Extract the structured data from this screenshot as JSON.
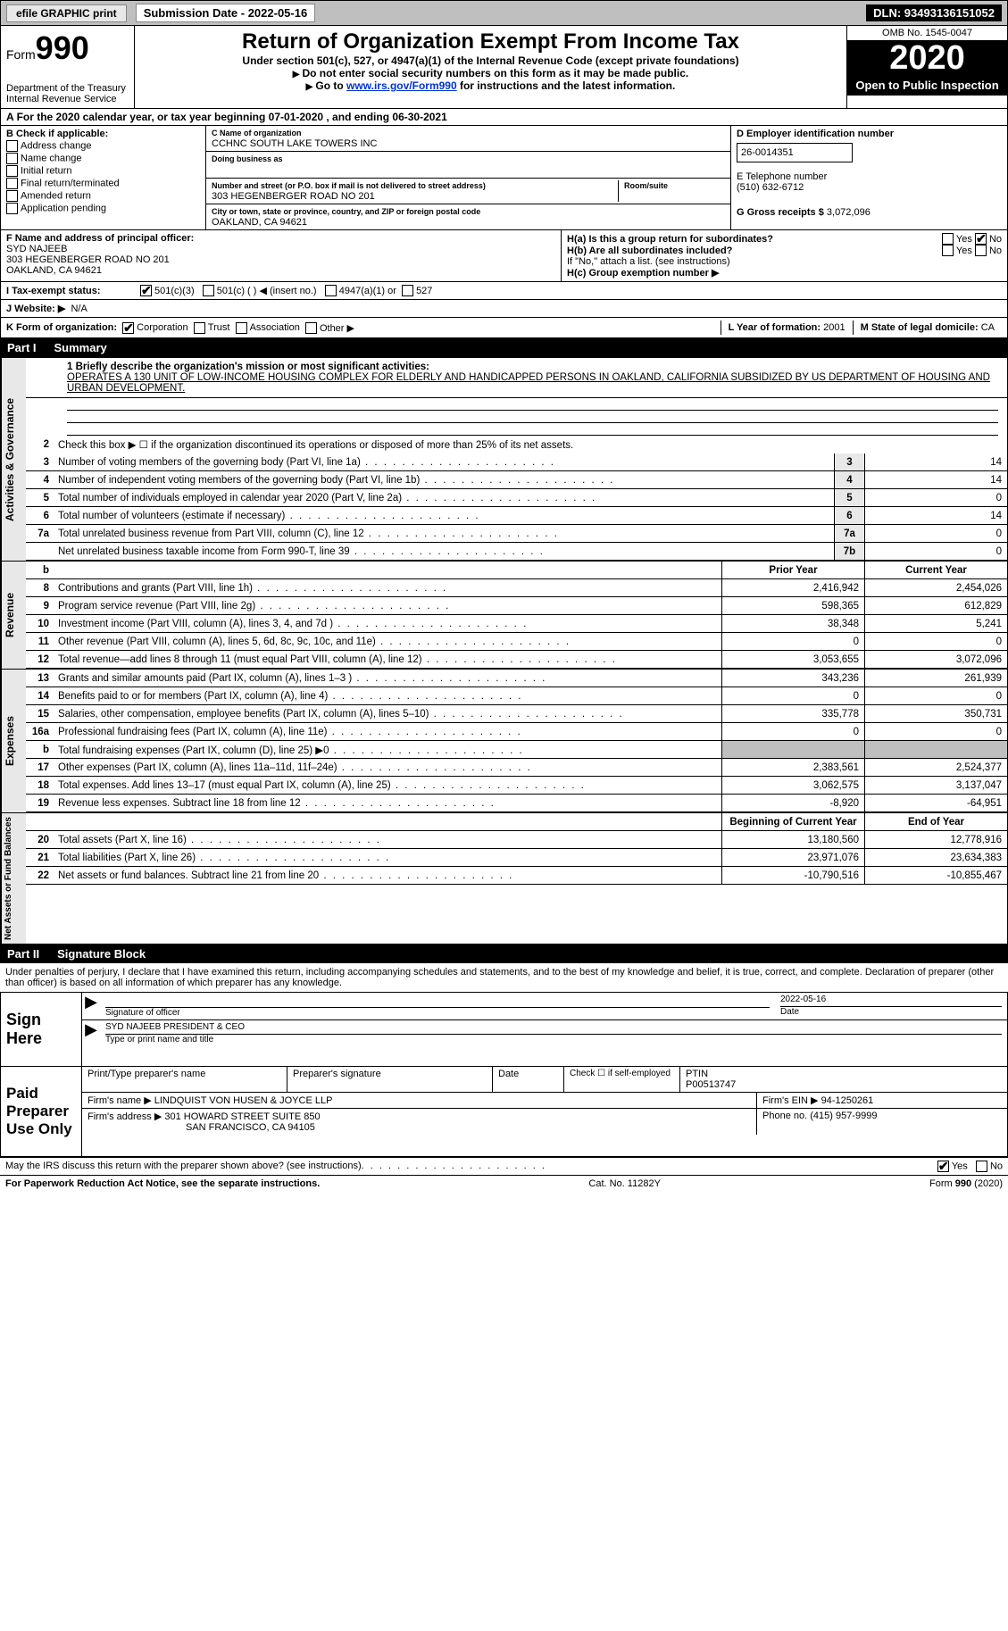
{
  "colors": {
    "header_bg": "#bfbfbf",
    "black": "#000000",
    "link": "#0033cc",
    "shade": "#e8e8e8"
  },
  "top_bar": {
    "efile_btn": "efile GRAPHIC print",
    "sub_date_lbl": "Submission Date - 2022-05-16",
    "dln": "DLN: 93493136151052"
  },
  "header": {
    "form_label": "Form",
    "form_num": "990",
    "dept": "Department of the Treasury",
    "irs": "Internal Revenue Service",
    "title": "Return of Organization Exempt From Income Tax",
    "sub1": "Under section 501(c), 527, or 4947(a)(1) of the Internal Revenue Code (except private foundations)",
    "sub2": "Do not enter social security numbers on this form as it may be made public.",
    "sub3_pre": "Go to ",
    "sub3_link": "www.irs.gov/Form990",
    "sub3_post": " for instructions and the latest information.",
    "omb": "OMB No. 1545-0047",
    "year": "2020",
    "open_pub": "Open to Public Inspection"
  },
  "tax_year_line": "For the 2020 calendar year, or tax year beginning 07-01-2020    , and ending 06-30-2021",
  "section_b": {
    "lbl": "B Check if applicable:",
    "items": [
      "Address change",
      "Name change",
      "Initial return",
      "Final return/terminated",
      "Amended return",
      "Application pending"
    ]
  },
  "section_c": {
    "name_lbl": "C Name of organization",
    "name": "CCHNC SOUTH LAKE TOWERS INC",
    "dba_lbl": "Doing business as",
    "addr_lbl": "Number and street (or P.O. box if mail is not delivered to street address)",
    "room_lbl": "Room/suite",
    "addr": "303 HEGENBERGER ROAD NO 201",
    "city_lbl": "City or town, state or province, country, and ZIP or foreign postal code",
    "city": "OAKLAND, CA  94621"
  },
  "section_d": {
    "lbl": "D Employer identification number",
    "val": "26-0014351"
  },
  "section_e": {
    "lbl": "E Telephone number",
    "val": "(510) 632-6712"
  },
  "section_g": {
    "lbl": "G Gross receipts $",
    "val": "3,072,096"
  },
  "section_f": {
    "lbl": "F Name and address of principal officer:",
    "name": "SYD NAJEEB",
    "addr1": "303 HEGENBERGER ROAD NO 201",
    "addr2": "OAKLAND, CA  94621"
  },
  "section_h": {
    "a_lbl": "H(a)  Is this a group return for subordinates?",
    "a_yes": "Yes",
    "a_no": "No",
    "b_lbl": "H(b)  Are all subordinates included?",
    "b_yes": "Yes",
    "b_no": "No",
    "b_note": "If \"No,\" attach a list. (see instructions)",
    "c_lbl": "H(c)  Group exemption number ▶"
  },
  "section_i": {
    "lbl": "I   Tax-exempt status:",
    "opts": [
      "501(c)(3)",
      "501(c) (  ) ◀ (insert no.)",
      "4947(a)(1) or",
      "527"
    ]
  },
  "section_j": {
    "lbl": "J   Website: ▶",
    "val": "N/A"
  },
  "section_k": {
    "lbl": "K Form of organization:",
    "opts": [
      "Corporation",
      "Trust",
      "Association",
      "Other ▶"
    ]
  },
  "section_l": {
    "lbl": "L Year of formation:",
    "val": "2001"
  },
  "section_m": {
    "lbl": "M State of legal domicile:",
    "val": "CA"
  },
  "part1": {
    "hdr_num": "Part I",
    "hdr_title": "Summary",
    "mission_lbl": "1   Briefly describe the organization's mission or most significant activities:",
    "mission": "OPERATES A 130 UNIT OF LOW-INCOME HOUSING COMPLEX FOR ELDERLY AND HANDICAPPED PERSONS IN OAKLAND, CALIFORNIA SUBSIDIZED BY US DEPARTMENT OF HOUSING AND URBAN DEVELOPMENT.",
    "line2": "Check this box ▶ ☐  if the organization discontinued its operations or disposed of more than 25% of its net assets.",
    "governance_lbl": "Activities & Governance",
    "revenue_lbl": "Revenue",
    "expenses_lbl": "Expenses",
    "netassets_lbl": "Net Assets or Fund Balances",
    "col_prior": "Prior Year",
    "col_current": "Current Year",
    "col_beg": "Beginning of Current Year",
    "col_end": "End of Year",
    "gov_lines": [
      {
        "n": "3",
        "d": "Number of voting members of the governing body (Part VI, line 1a)",
        "box": "3",
        "v": "14"
      },
      {
        "n": "4",
        "d": "Number of independent voting members of the governing body (Part VI, line 1b)",
        "box": "4",
        "v": "14"
      },
      {
        "n": "5",
        "d": "Total number of individuals employed in calendar year 2020 (Part V, line 2a)",
        "box": "5",
        "v": "0"
      },
      {
        "n": "6",
        "d": "Total number of volunteers (estimate if necessary)",
        "box": "6",
        "v": "14"
      },
      {
        "n": "7a",
        "d": "Total unrelated business revenue from Part VIII, column (C), line 12",
        "box": "7a",
        "v": "0"
      },
      {
        "n": "",
        "d": "Net unrelated business taxable income from Form 990-T, line 39",
        "box": "7b",
        "v": "0"
      }
    ],
    "rev_lines": [
      {
        "n": "8",
        "d": "Contributions and grants (Part VIII, line 1h)",
        "py": "2,416,942",
        "cy": "2,454,026"
      },
      {
        "n": "9",
        "d": "Program service revenue (Part VIII, line 2g)",
        "py": "598,365",
        "cy": "612,829"
      },
      {
        "n": "10",
        "d": "Investment income (Part VIII, column (A), lines 3, 4, and 7d )",
        "py": "38,348",
        "cy": "5,241"
      },
      {
        "n": "11",
        "d": "Other revenue (Part VIII, column (A), lines 5, 6d, 8c, 9c, 10c, and 11e)",
        "py": "0",
        "cy": "0"
      },
      {
        "n": "12",
        "d": "Total revenue—add lines 8 through 11 (must equal Part VIII, column (A), line 12)",
        "py": "3,053,655",
        "cy": "3,072,096"
      }
    ],
    "exp_lines": [
      {
        "n": "13",
        "d": "Grants and similar amounts paid (Part IX, column (A), lines 1–3 )",
        "py": "343,236",
        "cy": "261,939"
      },
      {
        "n": "14",
        "d": "Benefits paid to or for members (Part IX, column (A), line 4)",
        "py": "0",
        "cy": "0"
      },
      {
        "n": "15",
        "d": "Salaries, other compensation, employee benefits (Part IX, column (A), lines 5–10)",
        "py": "335,778",
        "cy": "350,731"
      },
      {
        "n": "16a",
        "d": "Professional fundraising fees (Part IX, column (A), line 11e)",
        "py": "0",
        "cy": "0"
      },
      {
        "n": "b",
        "d": "Total fundraising expenses (Part IX, column (D), line 25) ▶0",
        "py": "",
        "cy": "",
        "shade": true
      },
      {
        "n": "17",
        "d": "Other expenses (Part IX, column (A), lines 11a–11d, 11f–24e)",
        "py": "2,383,561",
        "cy": "2,524,377"
      },
      {
        "n": "18",
        "d": "Total expenses. Add lines 13–17 (must equal Part IX, column (A), line 25)",
        "py": "3,062,575",
        "cy": "3,137,047"
      },
      {
        "n": "19",
        "d": "Revenue less expenses. Subtract line 18 from line 12",
        "py": "-8,920",
        "cy": "-64,951"
      }
    ],
    "na_lines": [
      {
        "n": "20",
        "d": "Total assets (Part X, line 16)",
        "py": "13,180,560",
        "cy": "12,778,916"
      },
      {
        "n": "21",
        "d": "Total liabilities (Part X, line 26)",
        "py": "23,971,076",
        "cy": "23,634,383"
      },
      {
        "n": "22",
        "d": "Net assets or fund balances. Subtract line 21 from line 20",
        "py": "-10,790,516",
        "cy": "-10,855,467"
      }
    ]
  },
  "part2": {
    "hdr_num": "Part II",
    "hdr_title": "Signature Block",
    "intro": "Under penalties of perjury, I declare that I have examined this return, including accompanying schedules and statements, and to the best of my knowledge and belief, it is true, correct, and complete. Declaration of preparer (other than officer) is based on all information of which preparer has any knowledge.",
    "sign_here": "Sign Here",
    "sig_officer": "Signature of officer",
    "sig_date": "2022-05-16",
    "date_lbl": "Date",
    "officer_name": "SYD NAJEEB  PRESIDENT & CEO",
    "type_name_lbl": "Type or print name and title",
    "paid_prep": "Paid Preparer Use Only",
    "prep_name_lbl": "Print/Type preparer's name",
    "prep_sig_lbl": "Preparer's signature",
    "prep_date_lbl": "Date",
    "check_self": "Check ☐ if self-employed",
    "ptin_lbl": "PTIN",
    "ptin": "P00513747",
    "firm_name_lbl": "Firm's name    ▶",
    "firm_name": "LINDQUIST VON HUSEN & JOYCE LLP",
    "firm_ein_lbl": "Firm's EIN ▶",
    "firm_ein": "94-1250261",
    "firm_addr_lbl": "Firm's address ▶",
    "firm_addr1": "301 HOWARD STREET SUITE 850",
    "firm_addr2": "SAN FRANCISCO, CA  94105",
    "phone_lbl": "Phone no.",
    "phone": "(415) 957-9999",
    "discuss": "May the IRS discuss this return with the preparer shown above? (see instructions)",
    "yes": "Yes",
    "no": "No"
  },
  "footer": {
    "left": "For Paperwork Reduction Act Notice, see the separate instructions.",
    "mid": "Cat. No. 11282Y",
    "right": "Form 990 (2020)"
  }
}
